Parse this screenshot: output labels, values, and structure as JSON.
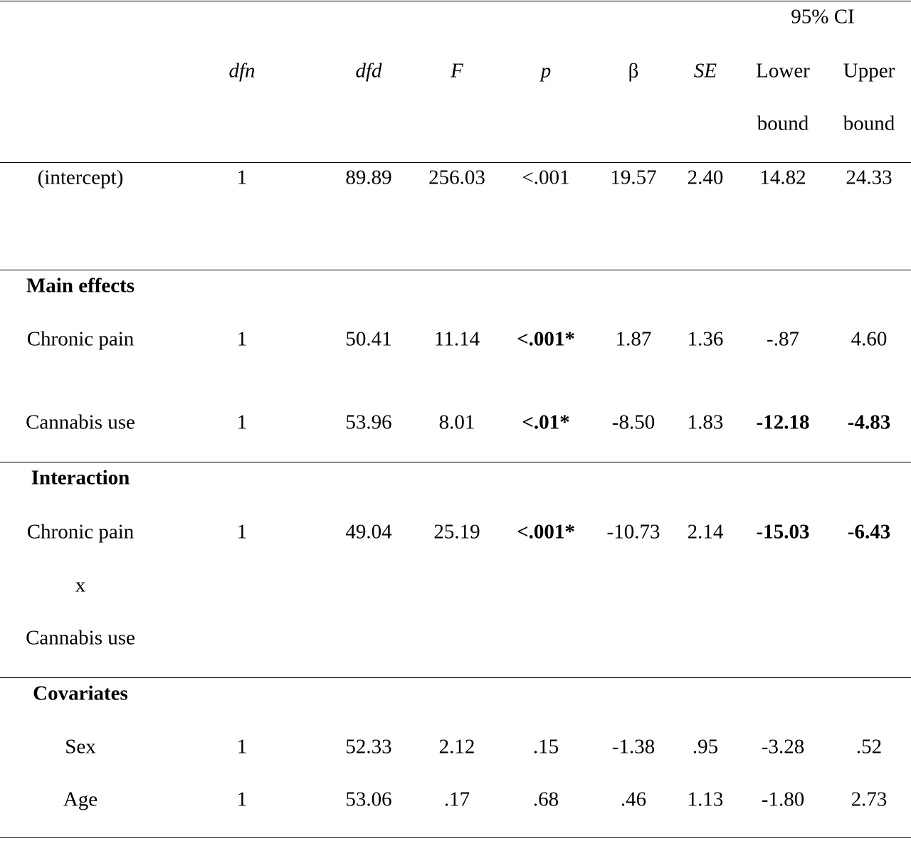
{
  "header": {
    "ci_group": "95% CI",
    "columns": [
      "dfn",
      "dfd",
      "F",
      "p",
      "β",
      "SE",
      "Lower",
      "Upper"
    ],
    "columns_line2": [
      "bound",
      "bound"
    ]
  },
  "intercept": {
    "label": "(intercept)",
    "values": [
      "1",
      "89.89",
      "256.03",
      "<.001",
      "19.57",
      "2.40",
      "14.82",
      "24.33"
    ]
  },
  "main_effects": {
    "heading": "Main effects",
    "rows": [
      {
        "label": "Chronic pain",
        "values": [
          "1",
          "50.41",
          "11.14",
          "<.001*",
          "1.87",
          "1.36",
          "-.87",
          "4.60"
        ]
      },
      {
        "label": "Cannabis use",
        "values": [
          "1",
          "53.96",
          "8.01",
          "<.01*",
          "-8.50",
          "1.83",
          "-12.18",
          "-4.83"
        ]
      }
    ]
  },
  "interaction": {
    "heading": "Interaction",
    "label_lines": [
      "Chronic pain",
      "x",
      "Cannabis use"
    ],
    "values": [
      "1",
      "49.04",
      "25.19",
      "<.001*",
      "-10.73",
      "2.14",
      "-15.03",
      "-6.43"
    ]
  },
  "covariates": {
    "heading": "Covariates",
    "rows": [
      {
        "label": "Sex",
        "values": [
          "1",
          "52.33",
          "2.12",
          ".15",
          "-1.38",
          ".95",
          "-3.28",
          ".52"
        ]
      },
      {
        "label": "Age",
        "values": [
          "1",
          "53.06",
          ".17",
          ".68",
          ".46",
          "1.13",
          "-1.80",
          "2.73"
        ]
      }
    ]
  }
}
